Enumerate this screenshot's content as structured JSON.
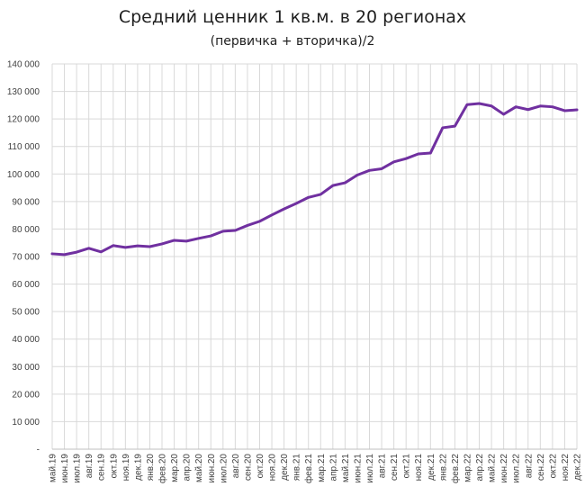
{
  "chart_data": {
    "type": "line",
    "title": "Средний ценник 1 кв.м. в 20 регионах",
    "subtitle": "(первичка + вторичка)/2",
    "xlabel": "",
    "ylabel": "",
    "ylim": [
      0,
      140000
    ],
    "yticks": [
      0,
      10000,
      20000,
      30000,
      40000,
      50000,
      60000,
      70000,
      80000,
      90000,
      100000,
      110000,
      120000,
      130000,
      140000
    ],
    "ytick_labels": [
      "-",
      "10 000",
      "20 000",
      "30 000",
      "40 000",
      "50 000",
      "60 000",
      "70 000",
      "80 000",
      "90 000",
      "100 000",
      "110 000",
      "120 000",
      "130 000",
      "140 000"
    ],
    "grid": true,
    "legend": "none",
    "line_color": "#7030a0",
    "categories": [
      "май.19",
      "июн.19",
      "июл.19",
      "авг.19",
      "сен.19",
      "окт.19",
      "ноя.19",
      "дек.19",
      "янв.20",
      "фев.20",
      "мар.20",
      "апр.20",
      "май.20",
      "июн.20",
      "июл.20",
      "авг.20",
      "сен.20",
      "окт.20",
      "ноя.20",
      "дек.20",
      "янв.21",
      "фев.21",
      "мар.21",
      "апр.21",
      "май.21",
      "июн.21",
      "июл.21",
      "авг.21",
      "сен.21",
      "окт.21",
      "ноя.21",
      "дек.21",
      "янв.22",
      "фев.22",
      "мар.22",
      "апр.22",
      "май.22",
      "июн.22",
      "июл.22",
      "авг.22",
      "сен.22",
      "окт.22",
      "ноя.22",
      "дек.22"
    ],
    "series": [
      {
        "values": [
          71000,
          70700,
          71600,
          73000,
          71700,
          74000,
          73300,
          73900,
          73600,
          74600,
          75900,
          75600,
          76600,
          77500,
          79200,
          79500,
          81300,
          82800,
          85100,
          87300,
          89300,
          91500,
          92600,
          95800,
          96800,
          99600,
          101300,
          101900,
          104400,
          105600,
          107300,
          107600,
          116800,
          117400,
          125200,
          125600,
          124700,
          121700,
          124400,
          123400,
          124700,
          124400,
          123000,
          123300
        ]
      }
    ]
  }
}
